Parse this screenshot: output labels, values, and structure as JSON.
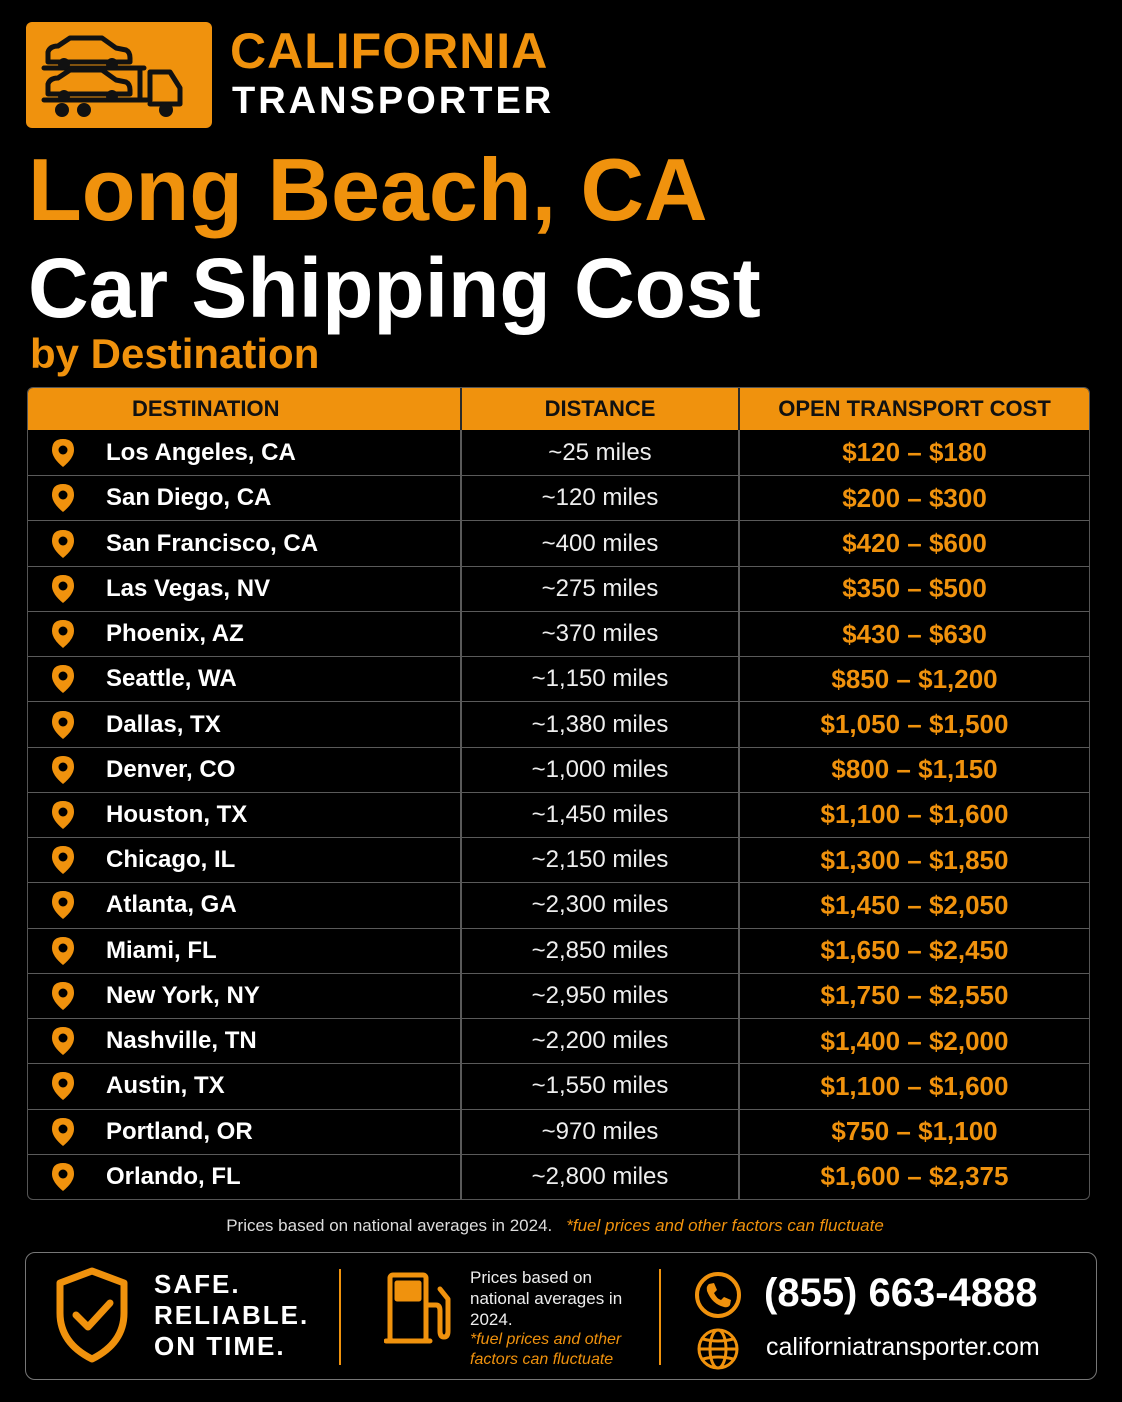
{
  "brand": {
    "line1": "CALIFORNIA",
    "line2": "TRANSPORTER"
  },
  "title": {
    "line1": "Long Beach, CA",
    "line2": "Car Shipping Cost",
    "line3": "by Destination"
  },
  "table": {
    "headers": [
      "DESTINATION",
      "DISTANCE",
      "OPEN TRANSPORT COST"
    ],
    "rows": [
      {
        "destination": "Los Angeles, CA",
        "distance": "~25 miles",
        "cost": "$120 – $180"
      },
      {
        "destination": "San Diego, CA",
        "distance": "~120 miles",
        "cost": "$200 – $300"
      },
      {
        "destination": "San Francisco, CA",
        "distance": "~400 miles",
        "cost": "$420 – $600"
      },
      {
        "destination": "Las Vegas, NV",
        "distance": "~275 miles",
        "cost": "$350 – $500"
      },
      {
        "destination": "Phoenix, AZ",
        "distance": "~370 miles",
        "cost": "$430 – $630"
      },
      {
        "destination": "Seattle, WA",
        "distance": "~1,150 miles",
        "cost": "$850 – $1,200"
      },
      {
        "destination": "Dallas, TX",
        "distance": "~1,380 miles",
        "cost": "$1,050 – $1,500"
      },
      {
        "destination": "Denver, CO",
        "distance": "~1,000 miles",
        "cost": "$800 – $1,150"
      },
      {
        "destination": "Houston, TX",
        "distance": "~1,450 miles",
        "cost": "$1,100 – $1,600"
      },
      {
        "destination": "Chicago, IL",
        "distance": "~2,150 miles",
        "cost": "$1,300 – $1,850"
      },
      {
        "destination": "Atlanta, GA",
        "distance": "~2,300 miles",
        "cost": "$1,450 – $2,050"
      },
      {
        "destination": "Miami, FL",
        "distance": "~2,850 miles",
        "cost": "$1,650 – $2,450"
      },
      {
        "destination": "New York, NY",
        "distance": "~2,950 miles",
        "cost": "$1,750 – $2,550"
      },
      {
        "destination": "Nashville, TN",
        "distance": "~2,200 miles",
        "cost": "$1,400 – $2,000"
      },
      {
        "destination": "Austin, TX",
        "distance": "~1,550 miles",
        "cost": "$1,100 – $1,600"
      },
      {
        "destination": "Portland, OR",
        "distance": "~970 miles",
        "cost": "$750 – $1,100"
      },
      {
        "destination": "Orlando, FL",
        "distance": "~2,800 miles",
        "cost": "$1,600 – $2,375"
      }
    ]
  },
  "note": {
    "text": "Prices based on national averages in 2024.",
    "fluctuate": "*fuel prices and other factors can fluctuate"
  },
  "footer": {
    "safe": [
      "SAFE.",
      "RELIABLE.",
      "ON TIME."
    ],
    "prices_text": "Prices based on national averages in 2024.",
    "prices_fluctuate": "*fuel prices and other factors can fluctuate",
    "phone": "(855) 663-4888",
    "website": "californiatransporter.com"
  },
  "icons": [
    "truck-car-carrier-icon",
    "location-pin-icon",
    "shield-check-icon",
    "fuel-pump-icon",
    "phone-icon",
    "globe-icon"
  ],
  "colors": {
    "accent": "#f0920d",
    "background": "#000000",
    "text": "#ffffff"
  }
}
